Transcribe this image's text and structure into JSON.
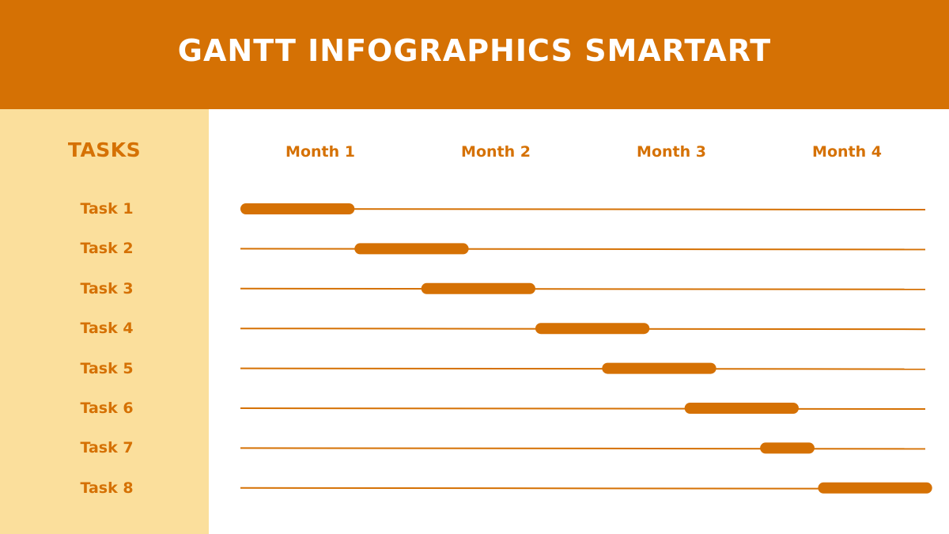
{
  "colors": {
    "accent": "#D57104",
    "sidebar": "#FBDF9C",
    "background": "#FFFFFF",
    "title_text": "#FFFFFF"
  },
  "header": {
    "title": "GANTT INFOGRAPHICS SMARTART"
  },
  "sidebar": {
    "heading": "TASKS"
  },
  "chart_data": {
    "type": "gantt",
    "title": "GANTT INFOGRAPHICS SMARTART",
    "columns": [
      "Month 1",
      "Month 2",
      "Month 3",
      "Month 4"
    ],
    "x_unit": "months",
    "xlim": [
      0,
      4
    ],
    "grid": false,
    "legend": "none",
    "tasks": [
      {
        "label": "Task 1",
        "start": 0.0,
        "end": 0.65
      },
      {
        "label": "Task 2",
        "start": 0.65,
        "end": 1.3
      },
      {
        "label": "Task 3",
        "start": 1.03,
        "end": 1.68
      },
      {
        "label": "Task 4",
        "start": 1.68,
        "end": 2.33
      },
      {
        "label": "Task 5",
        "start": 2.06,
        "end": 2.71
      },
      {
        "label": "Task 6",
        "start": 2.53,
        "end": 3.18
      },
      {
        "label": "Task 7",
        "start": 2.96,
        "end": 3.27
      },
      {
        "label": "Task 8",
        "start": 3.29,
        "end": 3.94
      }
    ]
  }
}
